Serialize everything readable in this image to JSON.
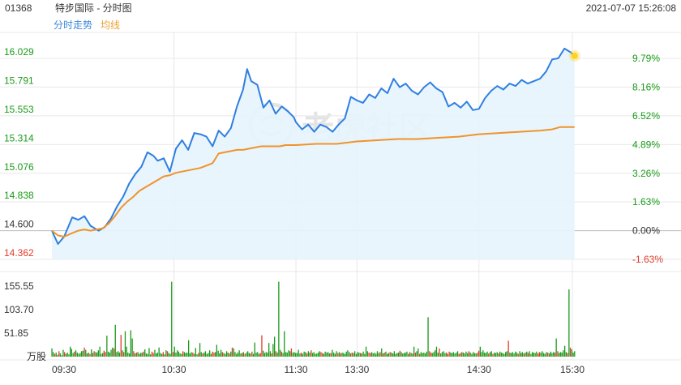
{
  "header": {
    "code": "01368",
    "name": "特步国际 - 分时图",
    "datetime": "2021-07-07 15:26:08"
  },
  "legend": [
    {
      "label": "分时走势",
      "color": "#3a86d6"
    },
    {
      "label": "均线",
      "color": "#f0a030"
    }
  ],
  "watermark": "老虎社区",
  "colors": {
    "price_line": "#2f7fe0",
    "avg_line": "#f0932b",
    "area_fill": "#e6f4fd",
    "up": "#1a9a1a",
    "down": "#e23a2a",
    "grid": "#e8e8e8",
    "axis_text": "#333333",
    "dot": "#ffd21f"
  },
  "chart_data": [
    {
      "type": "line",
      "title": "",
      "y_left_ticks": [
        "16.029",
        "15.791",
        "15.553",
        "15.314",
        "15.076",
        "14.838",
        "14.600",
        "14.362"
      ],
      "y_right_ticks": [
        "9.79%",
        "8.16%",
        "6.52%",
        "4.89%",
        "3.26%",
        "1.63%",
        "0.00%",
        "-1.63%"
      ],
      "prev_close": 14.6,
      "ylim": [
        14.362,
        16.267
      ],
      "x_ticks": [
        "09:30",
        "10:30",
        "11:30",
        "13:30",
        "14:30",
        "15:30"
      ],
      "series": [
        {
          "name": "分时走势",
          "points": [
            [
              "09:30",
              14.6
            ],
            [
              "09:33",
              14.49
            ],
            [
              "09:36",
              14.55
            ],
            [
              "09:40",
              14.71
            ],
            [
              "09:43",
              14.69
            ],
            [
              "09:46",
              14.72
            ],
            [
              "09:49",
              14.64
            ],
            [
              "09:53",
              14.6
            ],
            [
              "09:56",
              14.63
            ],
            [
              "09:59",
              14.7
            ],
            [
              "10:02",
              14.8
            ],
            [
              "10:05",
              14.88
            ],
            [
              "10:08",
              14.99
            ],
            [
              "10:11",
              15.07
            ],
            [
              "10:14",
              15.13
            ],
            [
              "10:17",
              15.25
            ],
            [
              "10:20",
              15.22
            ],
            [
              "10:22",
              15.18
            ],
            [
              "10:25",
              15.2
            ],
            [
              "10:28",
              15.09
            ],
            [
              "10:31",
              15.28
            ],
            [
              "10:34",
              15.35
            ],
            [
              "10:37",
              15.27
            ],
            [
              "10:40",
              15.41
            ],
            [
              "10:43",
              15.4
            ],
            [
              "10:46",
              15.38
            ],
            [
              "10:49",
              15.3
            ],
            [
              "10:52",
              15.43
            ],
            [
              "10:55",
              15.38
            ],
            [
              "10:58",
              15.45
            ],
            [
              "11:01",
              15.63
            ],
            [
              "11:04",
              15.77
            ],
            [
              "11:06",
              15.94
            ],
            [
              "11:08",
              15.84
            ],
            [
              "11:11",
              15.81
            ],
            [
              "11:14",
              15.62
            ],
            [
              "11:17",
              15.68
            ],
            [
              "11:20",
              15.57
            ],
            [
              "11:23",
              15.63
            ],
            [
              "11:26",
              15.59
            ],
            [
              "11:29",
              15.54
            ],
            [
              "13:00",
              15.5
            ],
            [
              "13:03",
              15.44
            ],
            [
              "13:06",
              15.48
            ],
            [
              "13:09",
              15.42
            ],
            [
              "13:12",
              15.48
            ],
            [
              "13:15",
              15.46
            ],
            [
              "13:18",
              15.42
            ],
            [
              "13:21",
              15.48
            ],
            [
              "13:24",
              15.53
            ],
            [
              "13:27",
              15.71
            ],
            [
              "13:30",
              15.68
            ],
            [
              "13:33",
              15.66
            ],
            [
              "13:36",
              15.73
            ],
            [
              "13:39",
              15.7
            ],
            [
              "13:42",
              15.78
            ],
            [
              "13:45",
              15.74
            ],
            [
              "13:48",
              15.86
            ],
            [
              "13:51",
              15.79
            ],
            [
              "13:54",
              15.82
            ],
            [
              "13:57",
              15.76
            ],
            [
              "14:00",
              15.73
            ],
            [
              "14:03",
              15.79
            ],
            [
              "14:06",
              15.83
            ],
            [
              "14:09",
              15.78
            ],
            [
              "14:12",
              15.75
            ],
            [
              "14:15",
              15.63
            ],
            [
              "14:18",
              15.66
            ],
            [
              "14:21",
              15.62
            ],
            [
              "14:24",
              15.67
            ],
            [
              "14:27",
              15.6
            ],
            [
              "14:30",
              15.61
            ],
            [
              "14:33",
              15.7
            ],
            [
              "14:36",
              15.76
            ],
            [
              "14:39",
              15.8
            ],
            [
              "14:42",
              15.77
            ],
            [
              "14:45",
              15.82
            ],
            [
              "14:48",
              15.8
            ],
            [
              "14:51",
              15.85
            ],
            [
              "14:54",
              15.82
            ],
            [
              "14:57",
              15.84
            ],
            [
              "15:00",
              15.86
            ],
            [
              "15:03",
              15.92
            ],
            [
              "15:06",
              16.02
            ],
            [
              "15:09",
              16.03
            ],
            [
              "15:12",
              16.11
            ],
            [
              "15:15",
              16.08
            ],
            [
              "15:17",
              16.05
            ]
          ]
        },
        {
          "name": "均线",
          "points": [
            [
              "09:30",
              14.6
            ],
            [
              "09:33",
              14.56
            ],
            [
              "09:36",
              14.55
            ],
            [
              "09:40",
              14.58
            ],
            [
              "09:43",
              14.6
            ],
            [
              "09:46",
              14.61
            ],
            [
              "09:49",
              14.6
            ],
            [
              "09:52",
              14.61
            ],
            [
              "09:55",
              14.62
            ],
            [
              "09:58",
              14.66
            ],
            [
              "10:01",
              14.72
            ],
            [
              "10:04",
              14.79
            ],
            [
              "10:07",
              14.84
            ],
            [
              "10:10",
              14.88
            ],
            [
              "10:13",
              14.93
            ],
            [
              "10:16",
              14.96
            ],
            [
              "10:19",
              14.99
            ],
            [
              "10:22",
              15.02
            ],
            [
              "10:25",
              15.05
            ],
            [
              "10:28",
              15.06
            ],
            [
              "10:31",
              15.08
            ],
            [
              "10:34",
              15.09
            ],
            [
              "10:37",
              15.1
            ],
            [
              "10:40",
              15.11
            ],
            [
              "10:43",
              15.12
            ],
            [
              "10:46",
              15.14
            ],
            [
              "10:49",
              15.16
            ],
            [
              "10:52",
              15.24
            ],
            [
              "10:55",
              15.25
            ],
            [
              "10:58",
              15.26
            ],
            [
              "11:01",
              15.27
            ],
            [
              "11:04",
              15.27
            ],
            [
              "11:07",
              15.28
            ],
            [
              "11:10",
              15.29
            ],
            [
              "11:13",
              15.3
            ],
            [
              "11:16",
              15.3
            ],
            [
              "11:19",
              15.3
            ],
            [
              "11:22",
              15.3
            ],
            [
              "11:25",
              15.31
            ],
            [
              "11:29",
              15.31
            ],
            [
              "13:00",
              15.31
            ],
            [
              "13:10",
              15.32
            ],
            [
              "13:20",
              15.32
            ],
            [
              "13:30",
              15.34
            ],
            [
              "13:40",
              15.35
            ],
            [
              "13:50",
              15.36
            ],
            [
              "14:00",
              15.36
            ],
            [
              "14:10",
              15.37
            ],
            [
              "14:20",
              15.38
            ],
            [
              "14:30",
              15.4
            ],
            [
              "14:40",
              15.41
            ],
            [
              "14:50",
              15.42
            ],
            [
              "15:00",
              15.43
            ],
            [
              "15:06",
              15.44
            ],
            [
              "15:10",
              15.46
            ],
            [
              "15:17",
              15.46
            ]
          ]
        }
      ],
      "last_point": [
        "15:17",
        16.05
      ]
    },
    {
      "type": "bar",
      "title": "",
      "y_ticks": [
        "155.55",
        "103.70",
        "51.85"
      ],
      "unit": "万股",
      "ylim": [
        0,
        175
      ],
      "x": "minutes 09:30–15:17",
      "values": [
        18,
        10,
        6,
        9,
        4,
        12,
        7,
        3,
        15,
        10,
        6,
        9,
        5,
        22,
        17,
        8,
        11,
        14,
        9,
        6,
        8,
        12,
        13,
        20,
        15,
        7,
        9,
        6,
        16,
        8,
        12,
        10,
        9,
        14,
        22,
        6,
        8,
        13,
        10,
        46,
        11,
        9,
        15,
        20,
        18,
        70,
        10,
        12,
        9,
        48,
        14,
        10,
        56,
        22,
        9,
        7,
        58,
        40,
        12,
        7,
        9,
        10,
        6,
        8,
        9,
        11,
        16,
        7,
        6,
        19,
        5,
        11,
        8,
        15,
        7,
        9,
        20,
        8,
        6,
        10,
        5,
        14,
        12,
        8,
        6,
        165,
        10,
        22,
        9,
        14,
        11,
        7,
        6,
        12,
        10,
        8,
        9,
        36,
        7,
        10,
        9,
        6,
        19,
        5,
        8,
        30,
        10,
        7,
        9,
        12,
        6,
        8,
        14,
        6,
        11,
        9,
        10,
        26,
        13,
        7,
        15,
        10,
        8,
        6,
        12,
        9,
        7,
        11,
        20,
        18,
        10,
        6,
        9,
        14,
        7,
        8,
        10,
        6,
        9,
        12,
        8,
        7,
        11,
        6,
        31,
        9,
        10,
        6,
        8,
        47,
        13,
        8,
        10,
        9,
        30,
        12,
        7,
        28,
        44,
        12,
        9,
        165,
        15,
        11,
        8,
        56,
        10,
        9,
        14,
        12,
        18,
        9,
        10,
        8,
        8,
        15,
        7,
        9,
        6,
        11,
        10,
        7,
        12,
        9,
        14,
        8,
        10,
        6,
        7,
        9,
        12,
        10,
        8,
        6,
        11,
        9,
        10,
        7,
        8,
        15,
        9,
        6,
        12,
        8,
        10,
        7,
        9,
        8,
        6,
        11,
        14,
        10,
        7,
        9,
        8,
        12,
        6,
        10,
        9,
        8,
        7,
        11,
        6,
        22,
        12,
        9,
        8,
        10,
        7,
        9,
        6,
        12,
        8,
        10,
        18,
        7,
        9,
        11,
        6,
        8,
        10,
        9,
        7,
        12,
        6,
        8,
        9,
        13,
        10,
        7,
        8,
        9,
        11,
        6,
        10,
        8,
        7,
        22,
        9,
        12,
        18,
        6,
        10,
        8,
        9,
        7,
        11,
        87,
        12,
        9,
        8,
        10,
        14,
        22,
        9,
        18,
        7,
        10,
        12,
        8,
        9,
        6,
        11,
        9,
        8,
        10,
        7,
        9,
        12,
        6,
        8,
        10,
        9,
        7,
        11,
        8,
        12,
        9,
        6,
        10,
        8,
        7,
        9,
        13,
        22,
        10,
        14,
        9,
        8,
        11,
        7,
        10,
        12,
        6,
        9,
        8,
        10,
        7,
        11,
        9,
        8,
        6,
        10,
        12,
        35,
        9,
        8,
        10,
        7,
        11,
        9,
        6,
        12,
        8,
        10,
        7,
        9,
        11,
        8,
        12,
        6,
        10,
        9,
        8,
        11,
        7,
        10,
        9,
        12,
        8,
        6,
        10,
        9,
        7,
        11,
        8,
        10,
        9,
        40,
        12,
        8,
        10,
        9,
        14,
        24,
        10,
        8,
        148,
        20,
        16,
        9,
        12
      ]
    }
  ]
}
